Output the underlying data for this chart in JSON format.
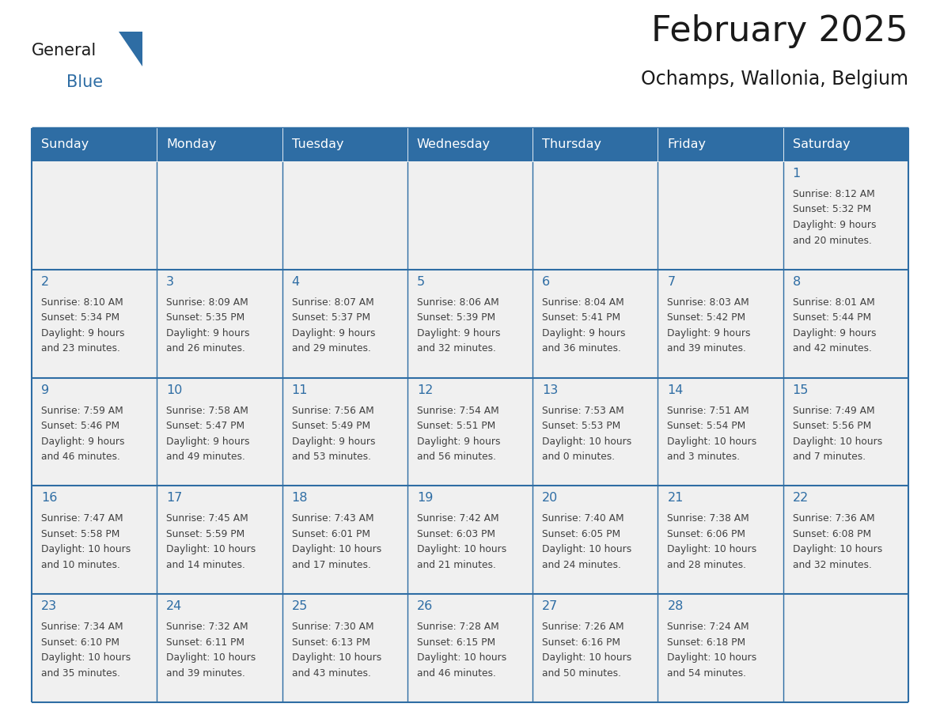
{
  "title": "February 2025",
  "subtitle": "Ochamps, Wallonia, Belgium",
  "days_of_week": [
    "Sunday",
    "Monday",
    "Tuesday",
    "Wednesday",
    "Thursday",
    "Friday",
    "Saturday"
  ],
  "header_bg": "#2E6DA4",
  "header_text": "#FFFFFF",
  "cell_bg": "#F0F0F0",
  "cell_empty_bg": "#F0F0F0",
  "separator_color": "#2E6DA4",
  "day_num_color": "#2E6DA4",
  "cell_text_color": "#404040",
  "title_color": "#1a1a1a",
  "subtitle_color": "#1a1a1a",
  "logo_general_color": "#1a1a1a",
  "logo_blue_color": "#2E6DA4",
  "weeks": [
    [
      {
        "day": null,
        "info": ""
      },
      {
        "day": null,
        "info": ""
      },
      {
        "day": null,
        "info": ""
      },
      {
        "day": null,
        "info": ""
      },
      {
        "day": null,
        "info": ""
      },
      {
        "day": null,
        "info": ""
      },
      {
        "day": 1,
        "info": "Sunrise: 8:12 AM\nSunset: 5:32 PM\nDaylight: 9 hours\nand 20 minutes."
      }
    ],
    [
      {
        "day": 2,
        "info": "Sunrise: 8:10 AM\nSunset: 5:34 PM\nDaylight: 9 hours\nand 23 minutes."
      },
      {
        "day": 3,
        "info": "Sunrise: 8:09 AM\nSunset: 5:35 PM\nDaylight: 9 hours\nand 26 minutes."
      },
      {
        "day": 4,
        "info": "Sunrise: 8:07 AM\nSunset: 5:37 PM\nDaylight: 9 hours\nand 29 minutes."
      },
      {
        "day": 5,
        "info": "Sunrise: 8:06 AM\nSunset: 5:39 PM\nDaylight: 9 hours\nand 32 minutes."
      },
      {
        "day": 6,
        "info": "Sunrise: 8:04 AM\nSunset: 5:41 PM\nDaylight: 9 hours\nand 36 minutes."
      },
      {
        "day": 7,
        "info": "Sunrise: 8:03 AM\nSunset: 5:42 PM\nDaylight: 9 hours\nand 39 minutes."
      },
      {
        "day": 8,
        "info": "Sunrise: 8:01 AM\nSunset: 5:44 PM\nDaylight: 9 hours\nand 42 minutes."
      }
    ],
    [
      {
        "day": 9,
        "info": "Sunrise: 7:59 AM\nSunset: 5:46 PM\nDaylight: 9 hours\nand 46 minutes."
      },
      {
        "day": 10,
        "info": "Sunrise: 7:58 AM\nSunset: 5:47 PM\nDaylight: 9 hours\nand 49 minutes."
      },
      {
        "day": 11,
        "info": "Sunrise: 7:56 AM\nSunset: 5:49 PM\nDaylight: 9 hours\nand 53 minutes."
      },
      {
        "day": 12,
        "info": "Sunrise: 7:54 AM\nSunset: 5:51 PM\nDaylight: 9 hours\nand 56 minutes."
      },
      {
        "day": 13,
        "info": "Sunrise: 7:53 AM\nSunset: 5:53 PM\nDaylight: 10 hours\nand 0 minutes."
      },
      {
        "day": 14,
        "info": "Sunrise: 7:51 AM\nSunset: 5:54 PM\nDaylight: 10 hours\nand 3 minutes."
      },
      {
        "day": 15,
        "info": "Sunrise: 7:49 AM\nSunset: 5:56 PM\nDaylight: 10 hours\nand 7 minutes."
      }
    ],
    [
      {
        "day": 16,
        "info": "Sunrise: 7:47 AM\nSunset: 5:58 PM\nDaylight: 10 hours\nand 10 minutes."
      },
      {
        "day": 17,
        "info": "Sunrise: 7:45 AM\nSunset: 5:59 PM\nDaylight: 10 hours\nand 14 minutes."
      },
      {
        "day": 18,
        "info": "Sunrise: 7:43 AM\nSunset: 6:01 PM\nDaylight: 10 hours\nand 17 minutes."
      },
      {
        "day": 19,
        "info": "Sunrise: 7:42 AM\nSunset: 6:03 PM\nDaylight: 10 hours\nand 21 minutes."
      },
      {
        "day": 20,
        "info": "Sunrise: 7:40 AM\nSunset: 6:05 PM\nDaylight: 10 hours\nand 24 minutes."
      },
      {
        "day": 21,
        "info": "Sunrise: 7:38 AM\nSunset: 6:06 PM\nDaylight: 10 hours\nand 28 minutes."
      },
      {
        "day": 22,
        "info": "Sunrise: 7:36 AM\nSunset: 6:08 PM\nDaylight: 10 hours\nand 32 minutes."
      }
    ],
    [
      {
        "day": 23,
        "info": "Sunrise: 7:34 AM\nSunset: 6:10 PM\nDaylight: 10 hours\nand 35 minutes."
      },
      {
        "day": 24,
        "info": "Sunrise: 7:32 AM\nSunset: 6:11 PM\nDaylight: 10 hours\nand 39 minutes."
      },
      {
        "day": 25,
        "info": "Sunrise: 7:30 AM\nSunset: 6:13 PM\nDaylight: 10 hours\nand 43 minutes."
      },
      {
        "day": 26,
        "info": "Sunrise: 7:28 AM\nSunset: 6:15 PM\nDaylight: 10 hours\nand 46 minutes."
      },
      {
        "day": 27,
        "info": "Sunrise: 7:26 AM\nSunset: 6:16 PM\nDaylight: 10 hours\nand 50 minutes."
      },
      {
        "day": 28,
        "info": "Sunrise: 7:24 AM\nSunset: 6:18 PM\nDaylight: 10 hours\nand 54 minutes."
      },
      {
        "day": null,
        "info": ""
      }
    ]
  ]
}
